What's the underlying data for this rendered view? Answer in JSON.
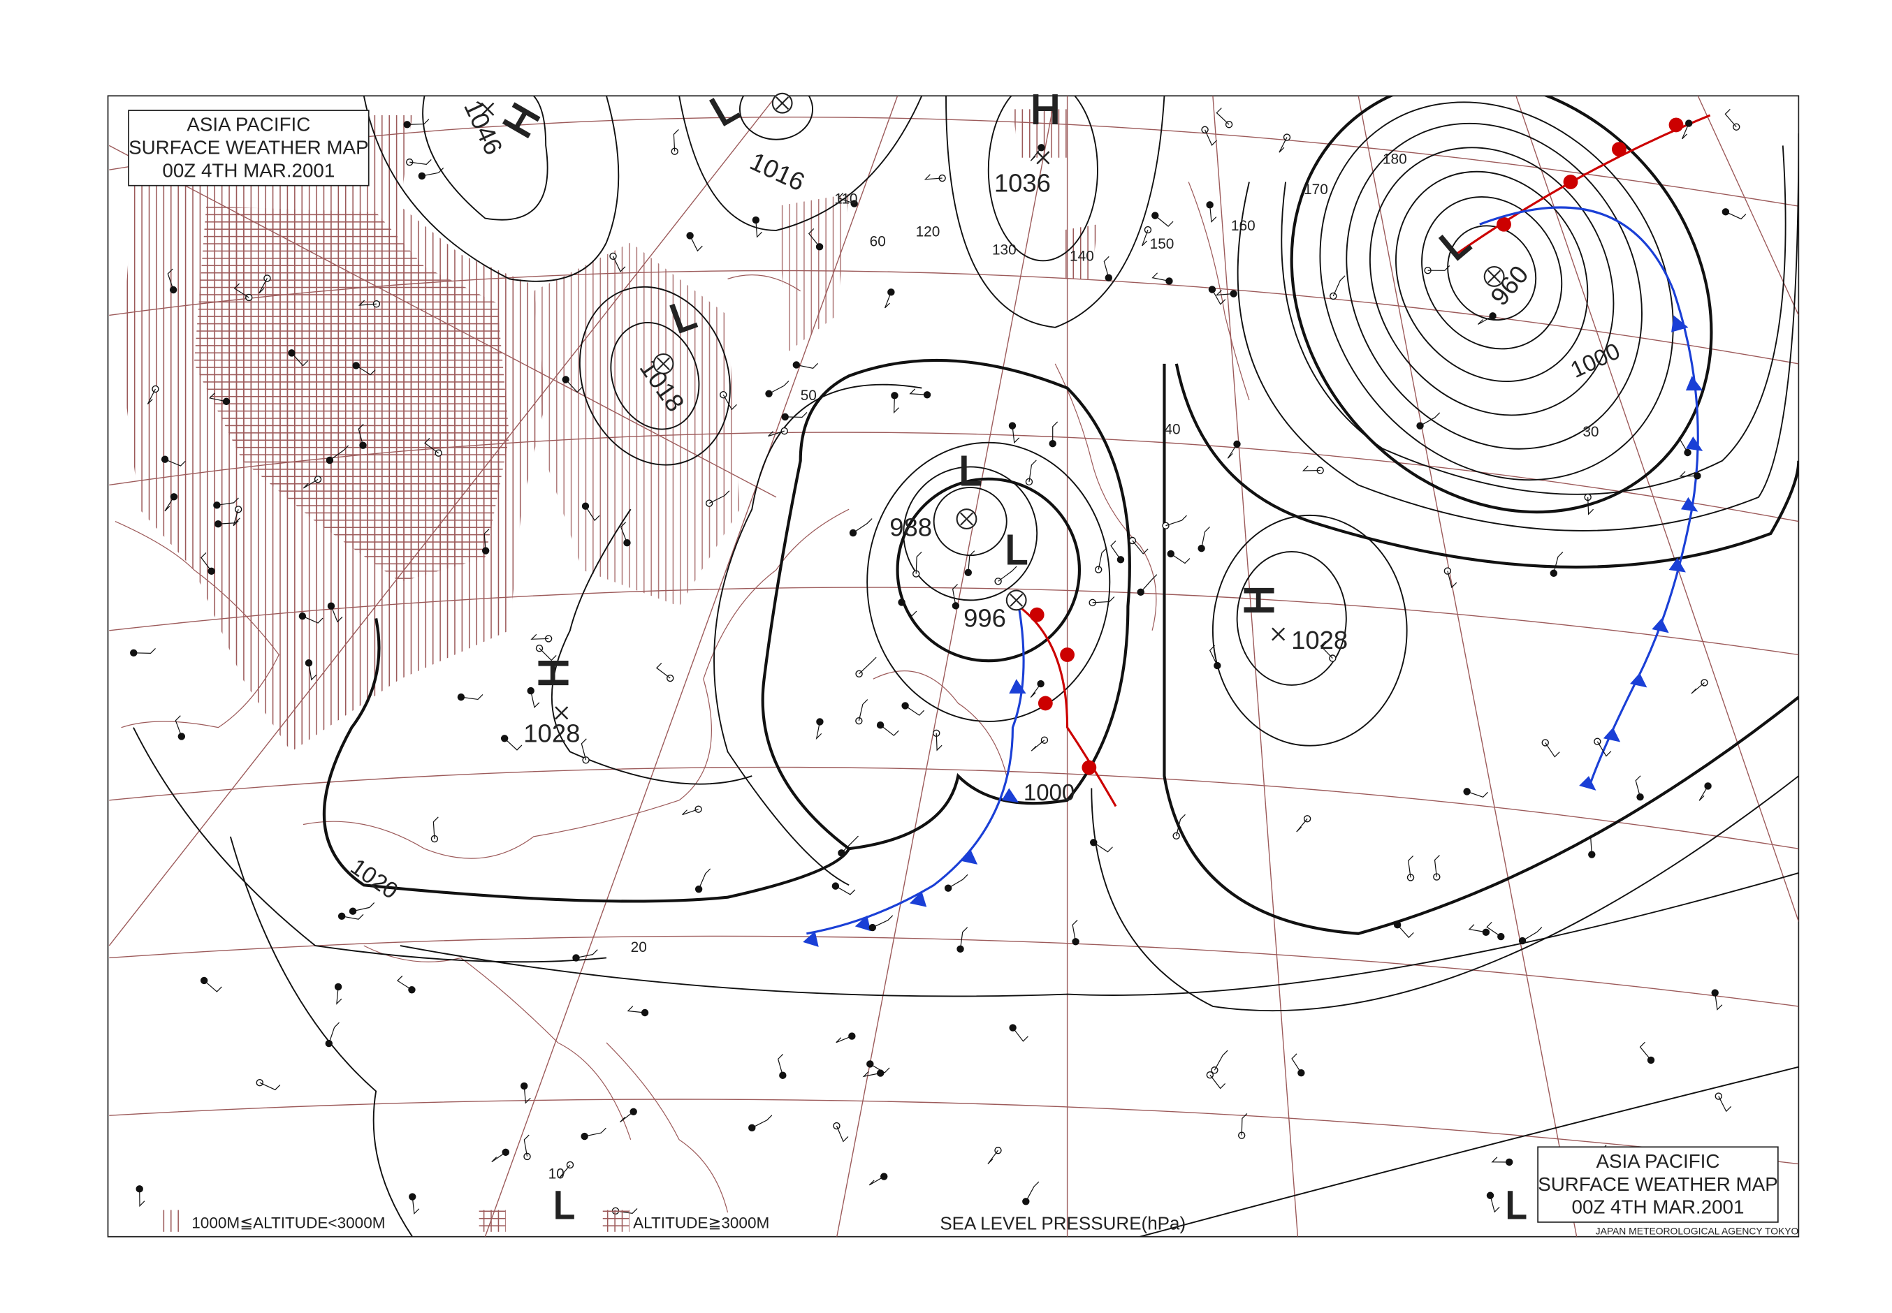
{
  "title_boxes": [
    {
      "lines": [
        "ASIA PACIFIC",
        "SURFACE WEATHER MAP",
        "00Z  4TH MAR.2001"
      ]
    },
    {
      "lines": [
        "ASIA PACIFIC",
        "SURFACE WEATHER MAP",
        "00Z  4TH MAR.2001"
      ]
    }
  ],
  "pressure_systems": [
    {
      "symbol": "H",
      "pressure": "1046"
    },
    {
      "symbol": "L",
      "pressure": "1016"
    },
    {
      "symbol": "H",
      "pressure": "1036"
    },
    {
      "symbol": "L",
      "pressure": "960"
    },
    {
      "symbol": "L",
      "pressure": "1018"
    },
    {
      "symbol": "L",
      "pressure": "988"
    },
    {
      "symbol": "L",
      "pressure": "996"
    },
    {
      "symbol": "H",
      "pressure": "1028"
    },
    {
      "symbol": "H",
      "pressure": "1028"
    }
  ],
  "isobar_labels": [
    "1000",
    "1000",
    "1020"
  ],
  "grid_labels": [
    "110",
    "120",
    "130",
    "140",
    "150",
    "160",
    "170",
    "180",
    "60",
    "50",
    "40",
    "30",
    "20",
    "10"
  ],
  "legend": {
    "low_altitude": "1000M≦ALTITUDE<3000M",
    "high_altitude": "ALTITUDE≧3000M",
    "pressure_unit": "SEA LEVEL PRESSURE(hPa)"
  },
  "agency": "JAPAN METEOROLOGICAL AGENCY TOKYO",
  "bottom_symbols": [
    "L",
    "L"
  ]
}
